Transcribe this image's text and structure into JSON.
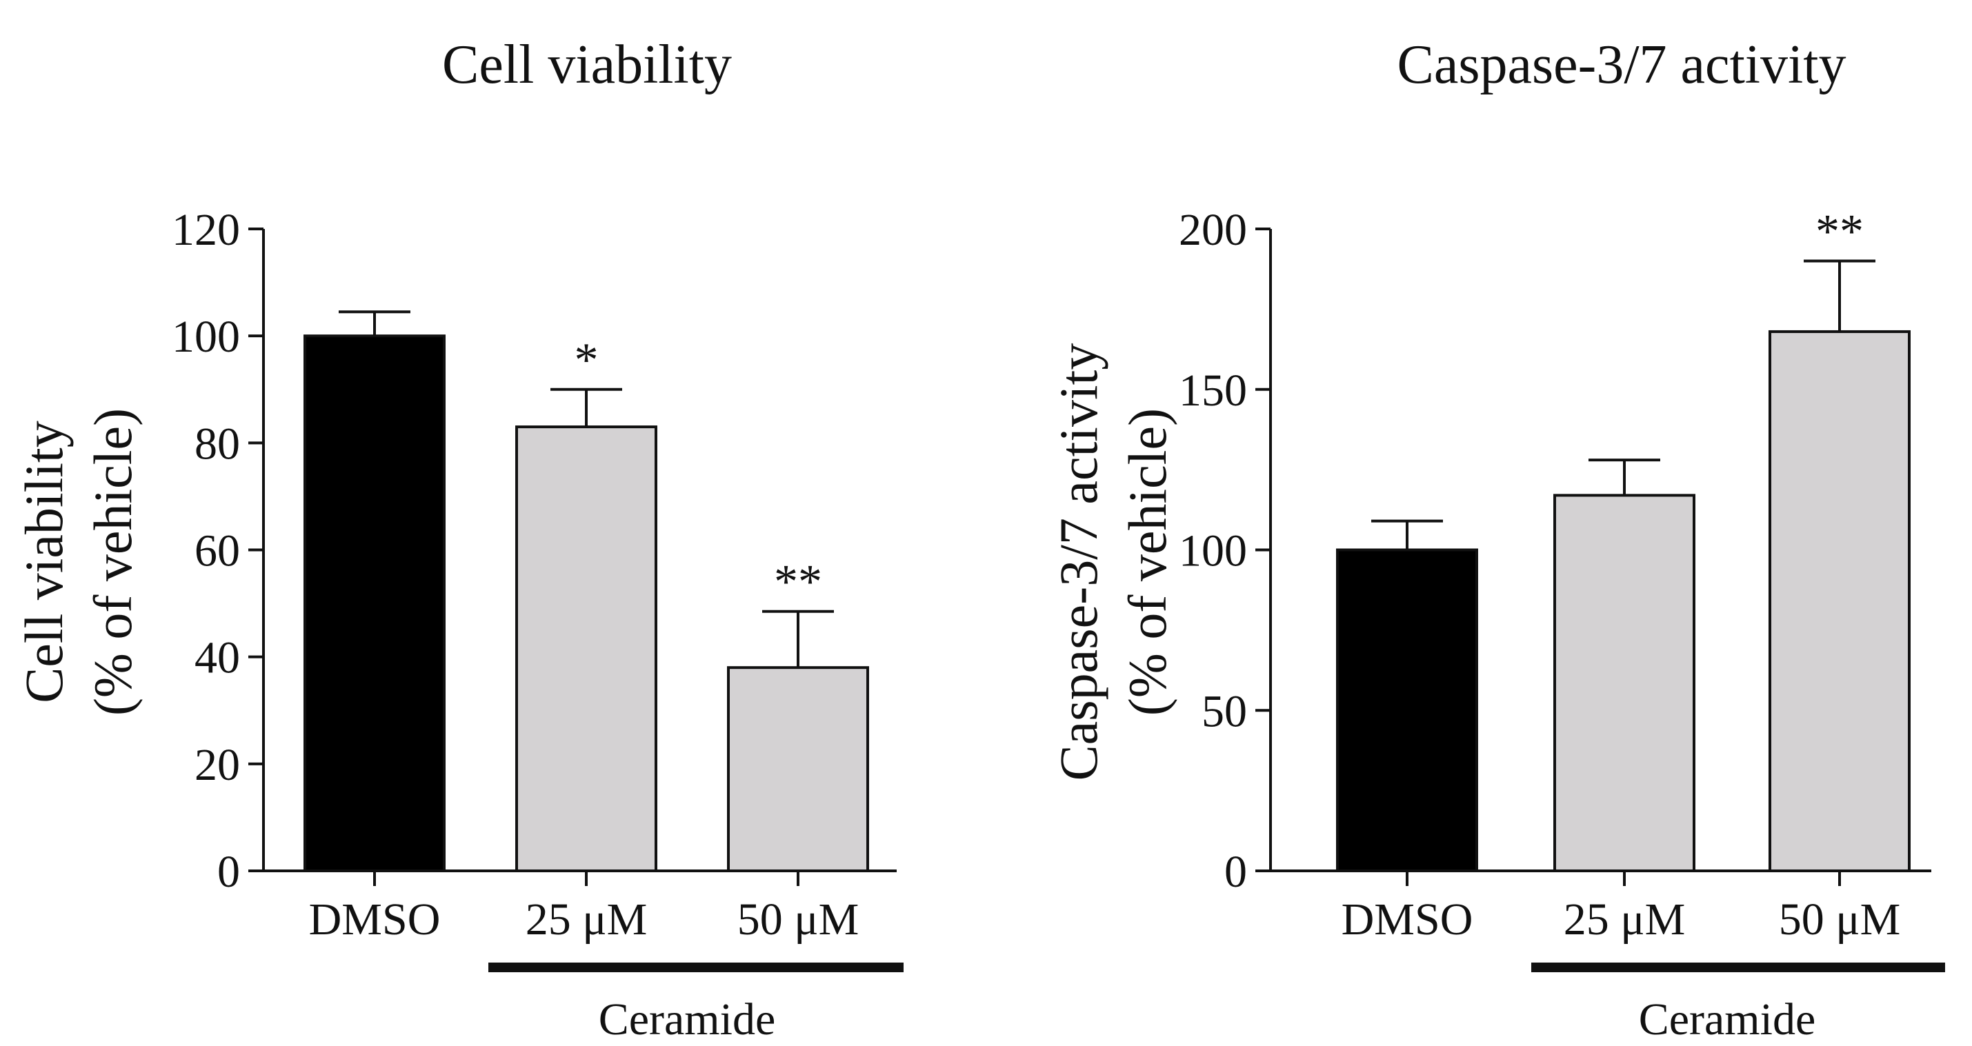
{
  "chart_data": [
    {
      "type": "bar",
      "title": "Cell viability",
      "ylabel_line1": "Cell viability",
      "ylabel_line2": "(% of vehicle)",
      "xlabel": "",
      "ylim": [
        0,
        120
      ],
      "yticks": [
        0,
        20,
        40,
        60,
        80,
        100,
        120
      ],
      "categories": [
        "DMSO",
        "25 μM",
        "50 μM"
      ],
      "values": [
        100,
        83,
        38
      ],
      "errors": [
        4.5,
        7,
        10.5
      ],
      "significance": [
        "",
        "*",
        "**"
      ],
      "bar_colors": [
        "#000000",
        "#d4d2d3",
        "#d4d2d3"
      ],
      "group_label": "Ceramide",
      "group_categories": [
        "25 μM",
        "50 μM"
      ]
    },
    {
      "type": "bar",
      "title": "Caspase-3/7 activity",
      "ylabel_line1": "Caspase-3/7 activity",
      "ylabel_line2": "(% of vehicle)",
      "xlabel": "",
      "ylim": [
        0,
        200
      ],
      "yticks": [
        0,
        50,
        100,
        150,
        200
      ],
      "categories": [
        "DMSO",
        "25 μM",
        "50 μM"
      ],
      "values": [
        100,
        117,
        168
      ],
      "errors": [
        9,
        11,
        22
      ],
      "significance": [
        "",
        "",
        "**"
      ],
      "bar_colors": [
        "#000000",
        "#d4d2d3",
        "#d4d2d3"
      ],
      "group_label": "Ceramide",
      "group_categories": [
        "25 μM",
        "50 μM"
      ]
    }
  ]
}
